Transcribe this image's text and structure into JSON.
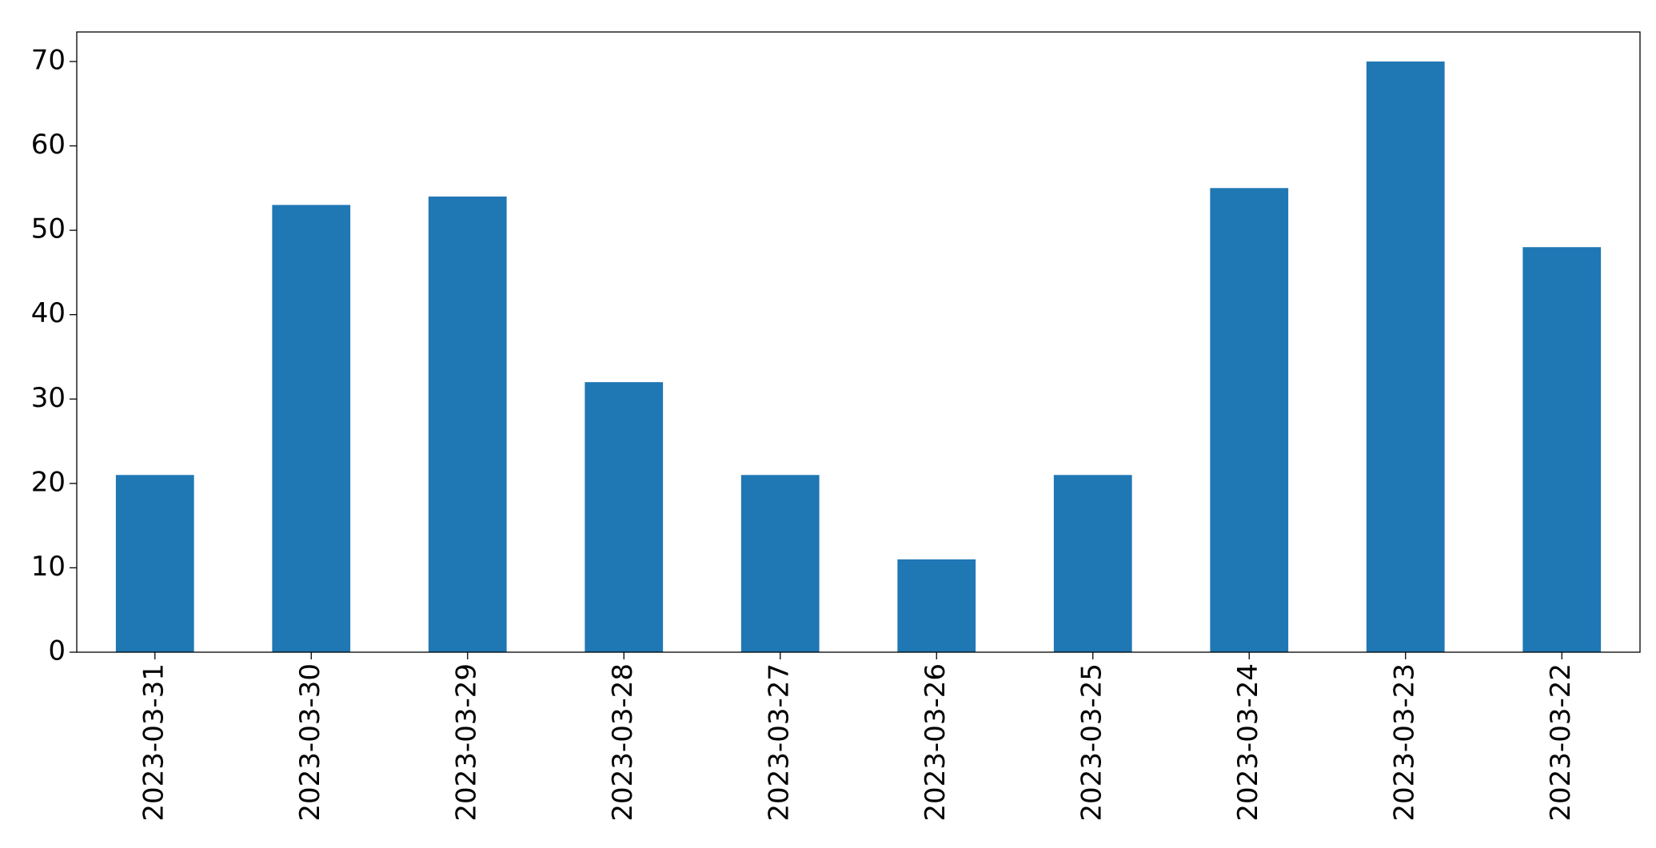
{
  "chart_data": {
    "type": "bar",
    "categories": [
      "2023-03-31",
      "2023-03-30",
      "2023-03-29",
      "2023-03-28",
      "2023-03-27",
      "2023-03-26",
      "2023-03-25",
      "2023-03-24",
      "2023-03-23",
      "2023-03-22"
    ],
    "values": [
      21,
      53,
      54,
      32,
      21,
      11,
      21,
      55,
      70,
      48
    ],
    "color": "#1f77b4",
    "ylim": [
      0,
      73.5
    ],
    "yticks": [
      0,
      10,
      20,
      30,
      40,
      50,
      60,
      70
    ],
    "grid": false
  }
}
